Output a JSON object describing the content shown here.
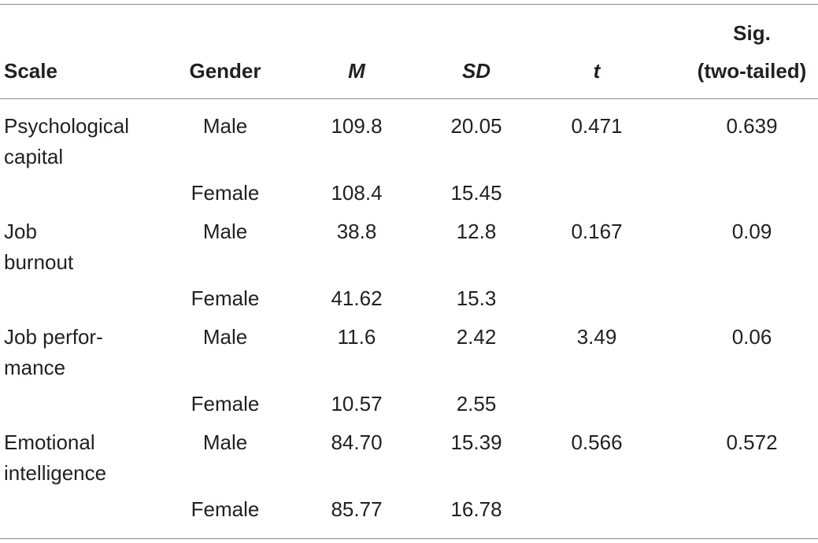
{
  "table": {
    "header": [
      "Scale",
      "Gender",
      "M",
      "SD",
      "t",
      [
        "Sig.",
        "(two-tailed)"
      ]
    ],
    "groups": [
      {
        "scale": [
          "Psychological",
          "capital"
        ],
        "t": "0.471",
        "sig": "0.639",
        "rows": [
          {
            "gender": "Male",
            "M": "109.8",
            "SD": "20.05"
          },
          {
            "gender": "Female",
            "M": "108.4",
            "SD": "15.45"
          }
        ]
      },
      {
        "scale": [
          "Job",
          "burnout"
        ],
        "t": "0.167",
        "sig": "0.09",
        "rows": [
          {
            "gender": "Male",
            "M": "38.8",
            "SD": "12.8"
          },
          {
            "gender": "Female",
            "M": "41.62",
            "SD": "15.3"
          }
        ]
      },
      {
        "scale": [
          "Job perfor-",
          "mance"
        ],
        "t": "3.49",
        "sig": "0.06",
        "rows": [
          {
            "gender": "Male",
            "M": "11.6",
            "SD": "2.42"
          },
          {
            "gender": "Female",
            "M": "10.57",
            "SD": "2.55"
          }
        ]
      },
      {
        "scale": [
          "Emotional",
          "intelligence"
        ],
        "t": "0.566",
        "sig": "0.572",
        "rows": [
          {
            "gender": "Male",
            "M": "84.70",
            "SD": "15.39"
          },
          {
            "gender": "Female",
            "M": "85.77",
            "SD": "16.78"
          }
        ]
      }
    ]
  }
}
